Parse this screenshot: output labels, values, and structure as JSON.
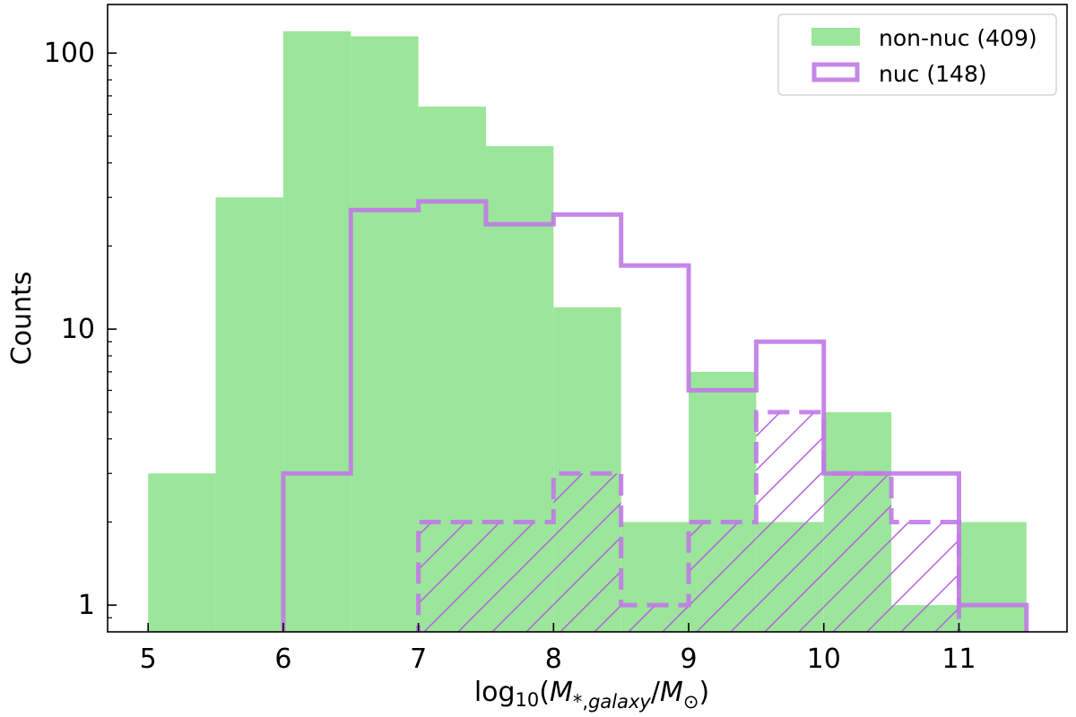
{
  "chart_data": {
    "type": "bar",
    "xlabel": "log10(M*,galaxy/M⊙)",
    "ylabel": "Counts",
    "x_scale": "linear",
    "y_scale": "log",
    "xlim": [
      4.7,
      11.8
    ],
    "ylim": [
      0.8,
      150
    ],
    "x_ticks": [
      5,
      6,
      7,
      8,
      9,
      10,
      11
    ],
    "y_ticks": [
      1,
      10,
      100
    ],
    "y_tick_labels": [
      "1",
      "10",
      "100"
    ],
    "grid": false,
    "legend_position": "top-right",
    "bin_edges": [
      5.0,
      5.5,
      6.0,
      6.5,
      7.0,
      7.5,
      8.0,
      8.5,
      9.0,
      9.5,
      10.0,
      10.5,
      11.0,
      11.5
    ],
    "series": [
      {
        "name": "non-nuc (409)",
        "style": "filled",
        "color": "#9be69a",
        "values": [
          3,
          30,
          120,
          115,
          64,
          46,
          12,
          2,
          7,
          2,
          5,
          1,
          2
        ]
      },
      {
        "name": "nuc (148)",
        "style": "step-outline",
        "color": "#c07ae6",
        "values": [
          0,
          0,
          3,
          27,
          29,
          24,
          26,
          17,
          6,
          9,
          3,
          3,
          1
        ]
      },
      {
        "style": "dashed-hatched",
        "color": "#c07ae6",
        "values": [
          0,
          0,
          0,
          0,
          2,
          2,
          3,
          1,
          2,
          5,
          3,
          2,
          0
        ]
      }
    ]
  }
}
